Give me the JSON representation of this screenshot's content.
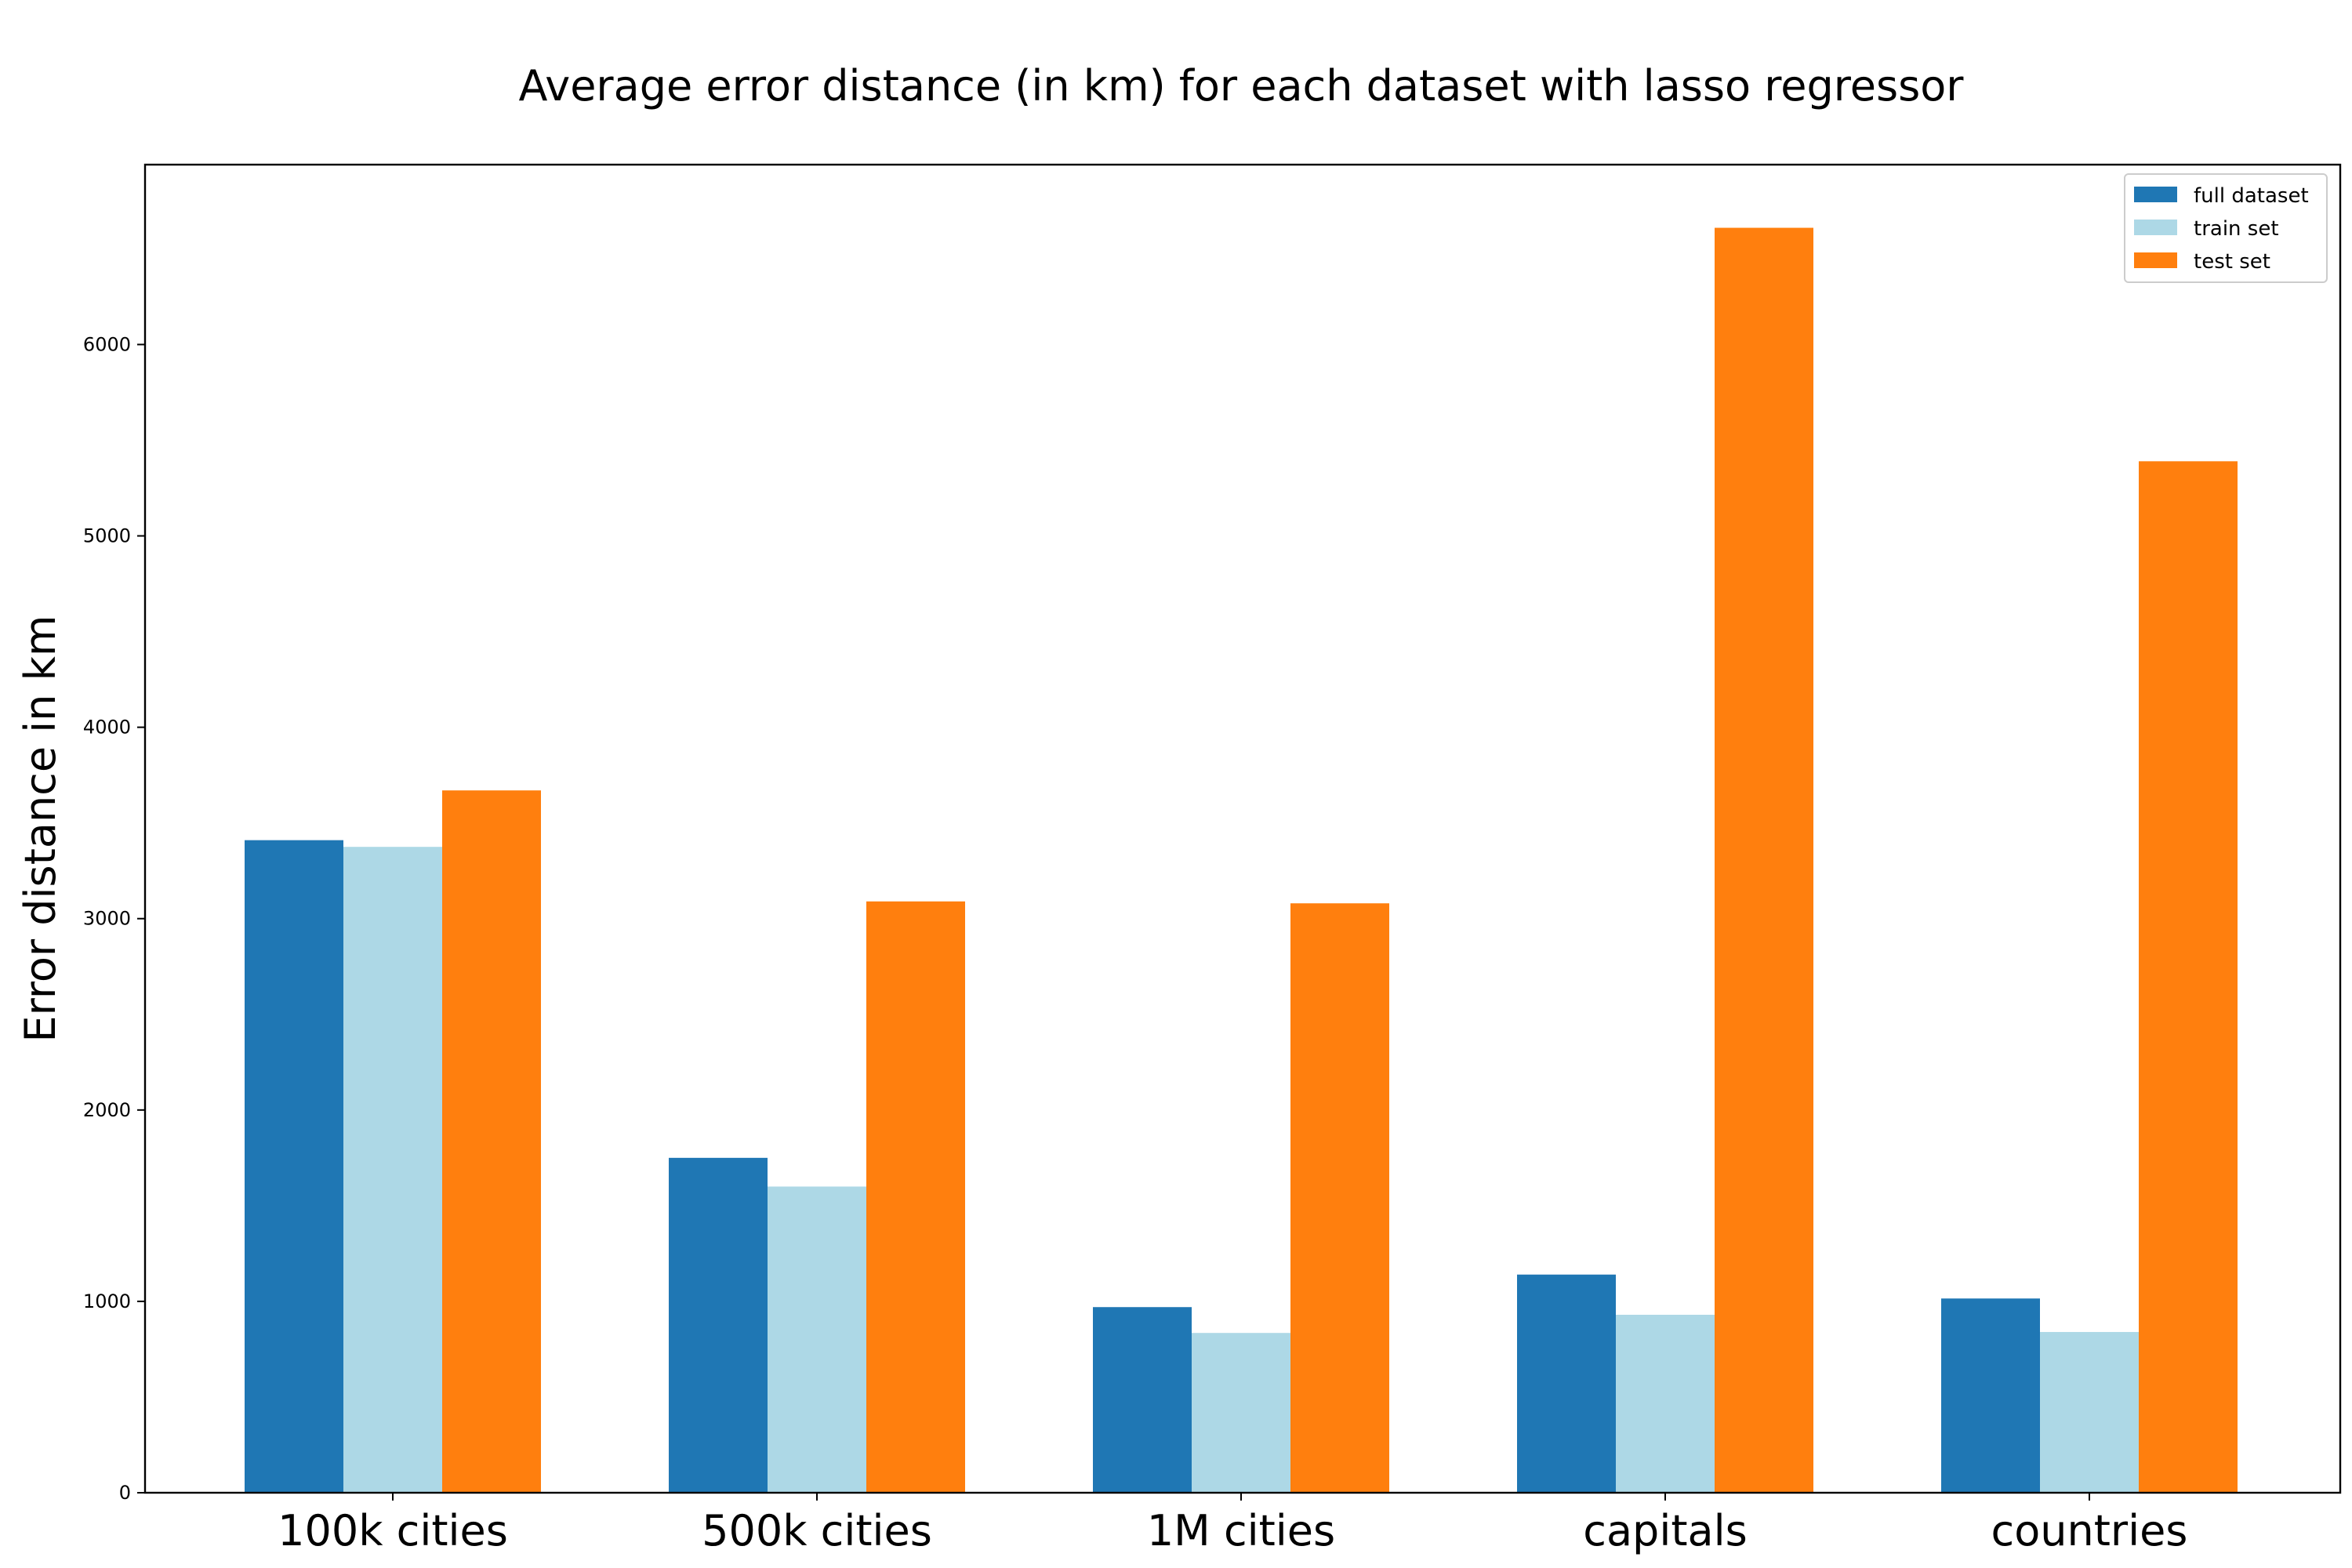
{
  "chart_data": {
    "type": "bar",
    "title": "Average error distance (in km) for each dataset with lasso regressor",
    "xlabel": "",
    "ylabel": "Error distance in km",
    "categories": [
      "100k cities",
      "500k cities",
      "1M cities",
      "capitals",
      "countries"
    ],
    "series": [
      {
        "name": "full dataset",
        "color": "#1f77b4",
        "values": [
          3410,
          1750,
          970,
          1140,
          1015
        ]
      },
      {
        "name": "train set",
        "color": "#add8e6",
        "values": [
          3375,
          1600,
          835,
          930,
          840
        ]
      },
      {
        "name": "test set",
        "color": "#ff7f0e",
        "values": [
          3670,
          3090,
          3080,
          6610,
          5390
        ]
      }
    ],
    "ylim": [
      0,
      6940
    ],
    "yticks": [
      0,
      1000,
      2000,
      3000,
      4000,
      5000,
      6000
    ],
    "grid": false,
    "legend_position": "top-right"
  }
}
